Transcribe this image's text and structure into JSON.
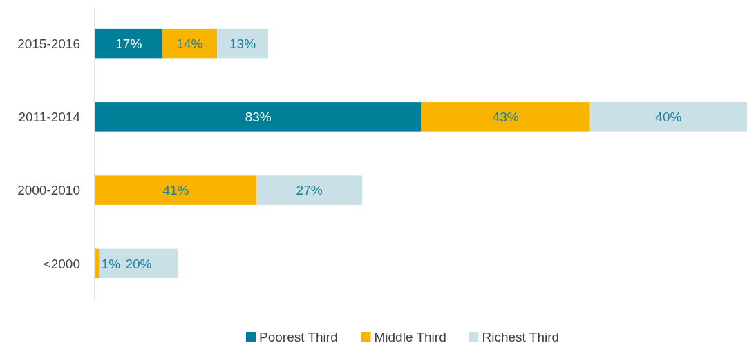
{
  "chart_data": {
    "type": "bar",
    "orientation": "horizontal",
    "stacked": true,
    "categories": [
      "2015-2016",
      "2011-2014",
      "2000-2010",
      "<2000"
    ],
    "legend": "bottom",
    "series": [
      {
        "name": "Poorest Third",
        "color": "#007f98",
        "values": [
          17,
          83,
          null,
          null
        ],
        "value_labels": [
          "17%",
          "83%",
          null,
          null
        ]
      },
      {
        "name": "Middle Third",
        "color": "#f9b400",
        "values": [
          14,
          43,
          41,
          1
        ],
        "value_labels": [
          "14%",
          "43%",
          "41%",
          "1%"
        ]
      },
      {
        "name": "Richest Third",
        "color": "#c9e1e6",
        "values": [
          13,
          40,
          27,
          20
        ],
        "value_labels": [
          "13%",
          "40%",
          "27%",
          "20%"
        ]
      }
    ]
  }
}
